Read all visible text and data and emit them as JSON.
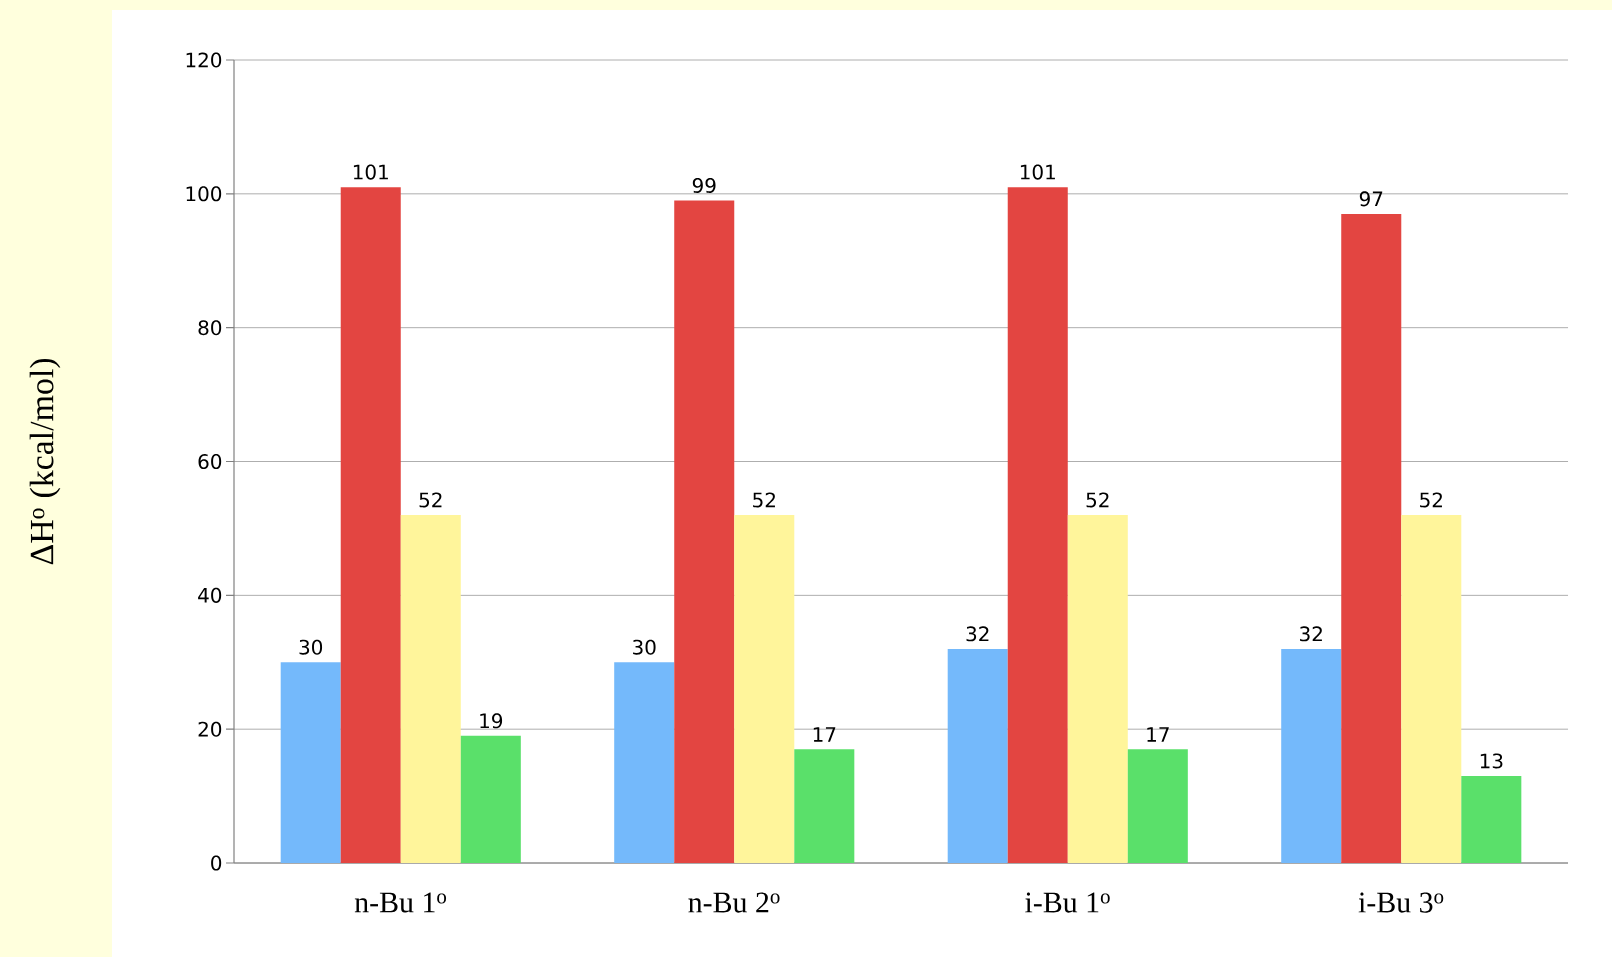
{
  "chart_data": {
    "type": "bar",
    "ylabel": "ΔH$^{o}$ (kcal/mol)",
    "categories": [
      "n-Bu 1$^{o}$",
      "n-Bu 2$^{o}$",
      "i-Bu 1$^{o}$",
      "i-Bu 3$^{o}$"
    ],
    "series": [
      {
        "color": "#74b9fb",
        "values": [
          30,
          30,
          32,
          32
        ]
      },
      {
        "color": "#e34541",
        "values": [
          101,
          99,
          101,
          97
        ]
      },
      {
        "color": "#fff59b",
        "values": [
          52,
          52,
          52,
          52
        ]
      },
      {
        "color": "#5ae06a",
        "values": [
          19,
          17,
          17,
          13
        ]
      }
    ],
    "ylim": [
      0,
      120
    ],
    "yticks": [
      0,
      20,
      40,
      60,
      80,
      100,
      120
    ],
    "grid": "y",
    "data_labels": true
  }
}
